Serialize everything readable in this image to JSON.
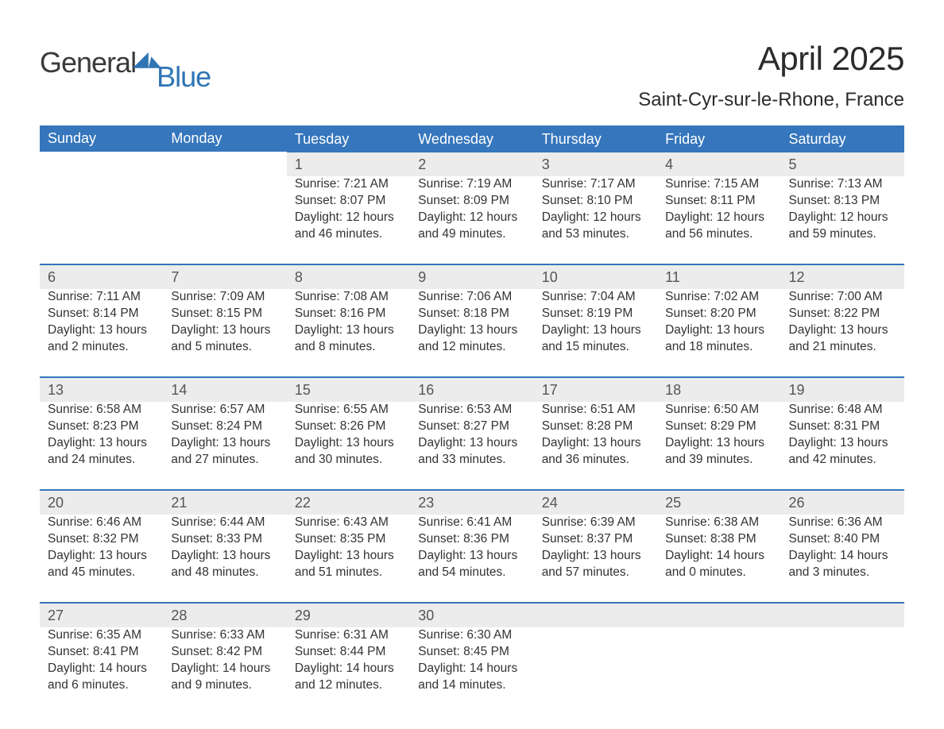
{
  "logo": {
    "word1": "General",
    "word2": "Blue",
    "mark_color": "#2f75b5",
    "text1_color": "#3a3a3a",
    "text2_color": "#2f75b5"
  },
  "title": "April 2025",
  "location": "Saint-Cyr-sur-le-Rhone, France",
  "header_bg": "#3576bc",
  "header_text": "#ffffff",
  "daynum_bg": "#ececec",
  "week_border": "#3576bc",
  "day_names": [
    "Sunday",
    "Monday",
    "Tuesday",
    "Wednesday",
    "Thursday",
    "Friday",
    "Saturday"
  ],
  "weeks": [
    {
      "first": true,
      "days": [
        null,
        null,
        {
          "n": "1",
          "sr": "7:21 AM",
          "ss": "8:07 PM",
          "dh": "12",
          "dm": "46"
        },
        {
          "n": "2",
          "sr": "7:19 AM",
          "ss": "8:09 PM",
          "dh": "12",
          "dm": "49"
        },
        {
          "n": "3",
          "sr": "7:17 AM",
          "ss": "8:10 PM",
          "dh": "12",
          "dm": "53"
        },
        {
          "n": "4",
          "sr": "7:15 AM",
          "ss": "8:11 PM",
          "dh": "12",
          "dm": "56"
        },
        {
          "n": "5",
          "sr": "7:13 AM",
          "ss": "8:13 PM",
          "dh": "12",
          "dm": "59"
        }
      ]
    },
    {
      "days": [
        {
          "n": "6",
          "sr": "7:11 AM",
          "ss": "8:14 PM",
          "dh": "13",
          "dm": "2"
        },
        {
          "n": "7",
          "sr": "7:09 AM",
          "ss": "8:15 PM",
          "dh": "13",
          "dm": "5"
        },
        {
          "n": "8",
          "sr": "7:08 AM",
          "ss": "8:16 PM",
          "dh": "13",
          "dm": "8"
        },
        {
          "n": "9",
          "sr": "7:06 AM",
          "ss": "8:18 PM",
          "dh": "13",
          "dm": "12"
        },
        {
          "n": "10",
          "sr": "7:04 AM",
          "ss": "8:19 PM",
          "dh": "13",
          "dm": "15"
        },
        {
          "n": "11",
          "sr": "7:02 AM",
          "ss": "8:20 PM",
          "dh": "13",
          "dm": "18"
        },
        {
          "n": "12",
          "sr": "7:00 AM",
          "ss": "8:22 PM",
          "dh": "13",
          "dm": "21"
        }
      ]
    },
    {
      "days": [
        {
          "n": "13",
          "sr": "6:58 AM",
          "ss": "8:23 PM",
          "dh": "13",
          "dm": "24"
        },
        {
          "n": "14",
          "sr": "6:57 AM",
          "ss": "8:24 PM",
          "dh": "13",
          "dm": "27"
        },
        {
          "n": "15",
          "sr": "6:55 AM",
          "ss": "8:26 PM",
          "dh": "13",
          "dm": "30"
        },
        {
          "n": "16",
          "sr": "6:53 AM",
          "ss": "8:27 PM",
          "dh": "13",
          "dm": "33"
        },
        {
          "n": "17",
          "sr": "6:51 AM",
          "ss": "8:28 PM",
          "dh": "13",
          "dm": "36"
        },
        {
          "n": "18",
          "sr": "6:50 AM",
          "ss": "8:29 PM",
          "dh": "13",
          "dm": "39"
        },
        {
          "n": "19",
          "sr": "6:48 AM",
          "ss": "8:31 PM",
          "dh": "13",
          "dm": "42"
        }
      ]
    },
    {
      "days": [
        {
          "n": "20",
          "sr": "6:46 AM",
          "ss": "8:32 PM",
          "dh": "13",
          "dm": "45"
        },
        {
          "n": "21",
          "sr": "6:44 AM",
          "ss": "8:33 PM",
          "dh": "13",
          "dm": "48"
        },
        {
          "n": "22",
          "sr": "6:43 AM",
          "ss": "8:35 PM",
          "dh": "13",
          "dm": "51"
        },
        {
          "n": "23",
          "sr": "6:41 AM",
          "ss": "8:36 PM",
          "dh": "13",
          "dm": "54"
        },
        {
          "n": "24",
          "sr": "6:39 AM",
          "ss": "8:37 PM",
          "dh": "13",
          "dm": "57"
        },
        {
          "n": "25",
          "sr": "6:38 AM",
          "ss": "8:38 PM",
          "dh": "14",
          "dm": "0"
        },
        {
          "n": "26",
          "sr": "6:36 AM",
          "ss": "8:40 PM",
          "dh": "14",
          "dm": "3"
        }
      ]
    },
    {
      "days": [
        {
          "n": "27",
          "sr": "6:35 AM",
          "ss": "8:41 PM",
          "dh": "14",
          "dm": "6"
        },
        {
          "n": "28",
          "sr": "6:33 AM",
          "ss": "8:42 PM",
          "dh": "14",
          "dm": "9"
        },
        {
          "n": "29",
          "sr": "6:31 AM",
          "ss": "8:44 PM",
          "dh": "14",
          "dm": "12"
        },
        {
          "n": "30",
          "sr": "6:30 AM",
          "ss": "8:45 PM",
          "dh": "14",
          "dm": "14"
        },
        null,
        null,
        null
      ]
    }
  ],
  "labels": {
    "sunrise": "Sunrise: ",
    "sunset": "Sunset: ",
    "daylight_p1": "Daylight: ",
    "daylight_p2": " hours and ",
    "daylight_p3": " minutes."
  }
}
